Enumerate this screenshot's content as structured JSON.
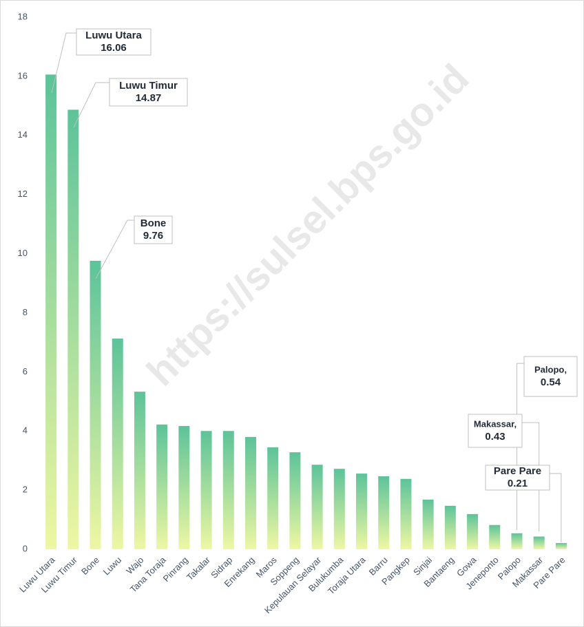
{
  "chart_data": {
    "type": "bar",
    "watermark": "https://sulsel.bps.go.id",
    "categories": [
      "Luwu Utara",
      "Luwu Timur",
      "Bone",
      "Luwu",
      "Wajo",
      "Tana Toraja",
      "Pinrang",
      "Takalar",
      "Sidrap",
      "Enrekang",
      "Maros",
      "Soppeng",
      "Kepulauan Selayar",
      "Bulukumba",
      "Toraja Utara",
      "Barru",
      "Pangkep",
      "Sinjai",
      "Bantaeng",
      "Gowa",
      "Jeneponto",
      "Palopo",
      "Makassar",
      "Pare Pare"
    ],
    "values": [
      16.06,
      14.87,
      9.76,
      7.13,
      5.33,
      4.22,
      4.17,
      4.0,
      4.0,
      3.8,
      3.45,
      3.28,
      2.86,
      2.72,
      2.56,
      2.47,
      2.38,
      1.68,
      1.47,
      1.19,
      0.82,
      0.54,
      0.43,
      0.21
    ],
    "color": [
      "#5cc39a",
      "#eef7a2"
    ],
    "ylim": [
      0,
      18
    ],
    "yticks": [
      0,
      2,
      4,
      6,
      8,
      10,
      12,
      14,
      16,
      18
    ],
    "grid": false,
    "annotations": [
      {
        "text": "Luwu Utara",
        "value": 16.06
      },
      {
        "text": "Luwu Timur",
        "value": 14.87
      },
      {
        "text": "Bone",
        "value": 9.76
      },
      {
        "text": "Palopo,",
        "value": 0.54
      },
      {
        "text": "Makassar,",
        "value": 0.43
      },
      {
        "text": "Pare Pare",
        "value": 0.21
      }
    ]
  }
}
